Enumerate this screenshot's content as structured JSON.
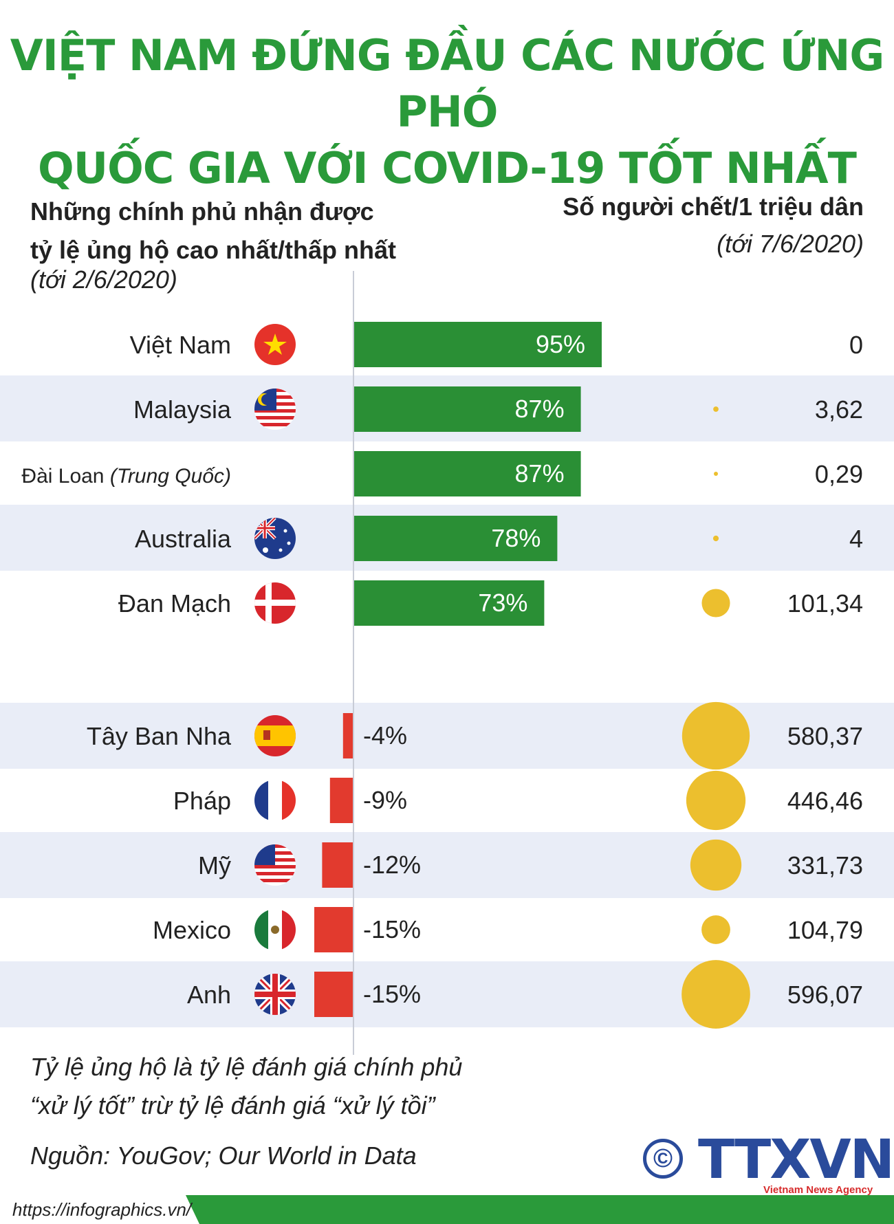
{
  "title_line1": "VIỆT NAM ĐỨNG ĐẦU CÁC NƯỚC ỨNG PHÓ",
  "title_line2": "QUỐC GIA VỚI COVID-19 TỐT NHẤT",
  "left_header_line1": "Những chính phủ nhận được",
  "left_header_line2": "tỷ lệ ủng hộ cao nhất/thấp nhất",
  "left_header_date": "(tới 2/6/2020)",
  "right_header": "Số người chết/1 triệu dân",
  "right_header_date": "(tới 7/6/2020)",
  "note_line1": "Tỷ lệ ủng hộ là tỷ lệ đánh giá chính phủ",
  "note_line2": "“xử lý tốt” trừ tỷ lệ đánh giá “xử lý tồi”",
  "source": "Nguồn: YouGov; Our World in Data",
  "logo_text": "TTXVN",
  "logo_sub": "Vietnam News Agency",
  "logo_symbol": "©",
  "footer_url": "https://infographics.vn/",
  "colors": {
    "title": "#2a9a3a",
    "positive": "#2a8f35",
    "negative": "#e23a2e",
    "bubble": "#ecbf2e",
    "band": "#e9edf7"
  },
  "chart_data": {
    "type": "bar",
    "categories": [
      "Việt Nam",
      "Malaysia",
      "Đài Loan",
      "Australia",
      "Đan Mạch",
      "Tây Ban Nha",
      "Pháp",
      "Mỹ",
      "Mexico",
      "Anh"
    ],
    "category_suffix": {
      "Đài Loan": "(Trung Quốc)"
    },
    "series": [
      {
        "values": [
          95,
          87,
          87,
          78,
          73,
          -4,
          -9,
          -12,
          -15,
          -15
        ],
        "labels": [
          "95%",
          "87%",
          "87%",
          "78%",
          "73%",
          "-4%",
          "-9%",
          "-12%",
          "-15%",
          "-15%"
        ]
      },
      {
        "values": [
          0,
          3.62,
          0.29,
          4,
          101.34,
          580.37,
          446.46,
          331.73,
          104.79,
          596.07
        ],
        "labels": [
          "0",
          "3,62",
          "0,29",
          "4",
          "101,34",
          "580,37",
          "446,46",
          "331,73",
          "104,79",
          "596,07"
        ]
      }
    ],
    "flags": [
      "vietnam-flag-icon",
      "malaysia-flag-icon",
      "",
      "australia-flag-icon",
      "denmark-flag-icon",
      "spain-flag-icon",
      "france-flag-icon",
      "usa-flag-icon",
      "mexico-flag-icon",
      "uk-flag-icon"
    ]
  }
}
